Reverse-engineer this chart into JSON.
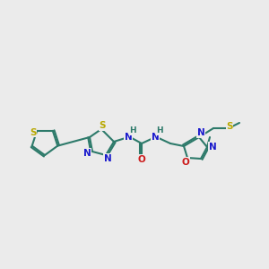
{
  "bg_color": "#ebebeb",
  "bond_color": "#2d7a6a",
  "bond_lw": 1.5,
  "atom_colors": {
    "S": "#b8a800",
    "N": "#1a1acc",
    "O": "#cc1a1a",
    "H": "#2d7a6a",
    "C": "#2d7a6a"
  },
  "font_size": 7.5,
  "fig_size": [
    3.0,
    3.0
  ],
  "dpi": 100
}
